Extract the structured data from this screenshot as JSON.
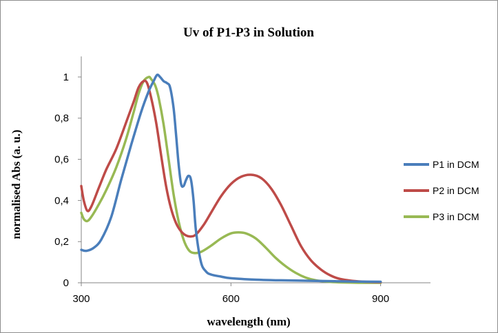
{
  "chart_data": {
    "type": "line",
    "title": "Uv of P1-P3 in Solution",
    "xlabel": "wavelength (nm)",
    "ylabel": "normalised Abs (a. u.)",
    "xlim": [
      300,
      1000
    ],
    "ylim": [
      0,
      1.1
    ],
    "x_ticks": [
      300,
      600,
      900
    ],
    "x_tick_labels": [
      "300",
      "600",
      "900"
    ],
    "y_ticks": [
      0,
      0.2,
      0.4,
      0.6,
      0.8,
      1
    ],
    "y_tick_labels": [
      "0",
      "0,2",
      "0,4",
      "0,6",
      "0,8",
      "1"
    ],
    "grid": false,
    "legend_position": "right",
    "series": [
      {
        "name": "P1 in DCM",
        "color": "#4a7ebb",
        "x": [
          300,
          310,
          325,
          340,
          360,
          380,
          400,
          420,
          435,
          445,
          452,
          458,
          465,
          472,
          478,
          485,
          490,
          495,
          500,
          505,
          510,
          515,
          520,
          525,
          530,
          540,
          550,
          560,
          580,
          600,
          650,
          700,
          750,
          800,
          850,
          900
        ],
        "y": [
          0.16,
          0.155,
          0.17,
          0.21,
          0.32,
          0.5,
          0.67,
          0.83,
          0.93,
          0.98,
          1.01,
          1.0,
          0.98,
          0.97,
          0.95,
          0.85,
          0.72,
          0.58,
          0.48,
          0.47,
          0.5,
          0.52,
          0.5,
          0.4,
          0.25,
          0.1,
          0.055,
          0.04,
          0.03,
          0.022,
          0.015,
          0.012,
          0.01,
          0.008,
          0.006,
          0.005
        ]
      },
      {
        "name": "P2 in DCM",
        "color": "#be4b48",
        "x": [
          300,
          305,
          312,
          320,
          335,
          350,
          370,
          390,
          405,
          415,
          425,
          432,
          440,
          450,
          460,
          470,
          480,
          490,
          500,
          510,
          520,
          530,
          545,
          560,
          580,
          600,
          620,
          640,
          660,
          680,
          700,
          720,
          740,
          760,
          780,
          800,
          820,
          850,
          880,
          900
        ],
        "y": [
          0.47,
          0.4,
          0.35,
          0.37,
          0.46,
          0.55,
          0.65,
          0.78,
          0.88,
          0.95,
          0.98,
          0.97,
          0.9,
          0.78,
          0.62,
          0.47,
          0.36,
          0.29,
          0.25,
          0.23,
          0.225,
          0.235,
          0.28,
          0.34,
          0.42,
          0.48,
          0.515,
          0.525,
          0.51,
          0.46,
          0.38,
          0.28,
          0.18,
          0.11,
          0.065,
          0.035,
          0.018,
          0.008,
          0.004,
          0.003
        ]
      },
      {
        "name": "P3 in DCM",
        "color": "#98b954",
        "x": [
          300,
          305,
          312,
          320,
          335,
          350,
          370,
          390,
          405,
          415,
          425,
          435,
          440,
          448,
          455,
          465,
          475,
          485,
          495,
          505,
          515,
          525,
          540,
          560,
          580,
          600,
          615,
          630,
          650,
          670,
          690,
          710,
          730,
          750,
          770,
          790,
          810,
          840,
          870,
          900
        ],
        "y": [
          0.34,
          0.31,
          0.3,
          0.32,
          0.38,
          0.45,
          0.56,
          0.7,
          0.83,
          0.92,
          0.98,
          1.0,
          0.99,
          0.96,
          0.9,
          0.77,
          0.6,
          0.43,
          0.3,
          0.21,
          0.16,
          0.145,
          0.15,
          0.18,
          0.215,
          0.24,
          0.245,
          0.24,
          0.215,
          0.17,
          0.12,
          0.08,
          0.048,
          0.025,
          0.012,
          0.006,
          0.003,
          0.001,
          0.0,
          0.0
        ]
      }
    ]
  }
}
